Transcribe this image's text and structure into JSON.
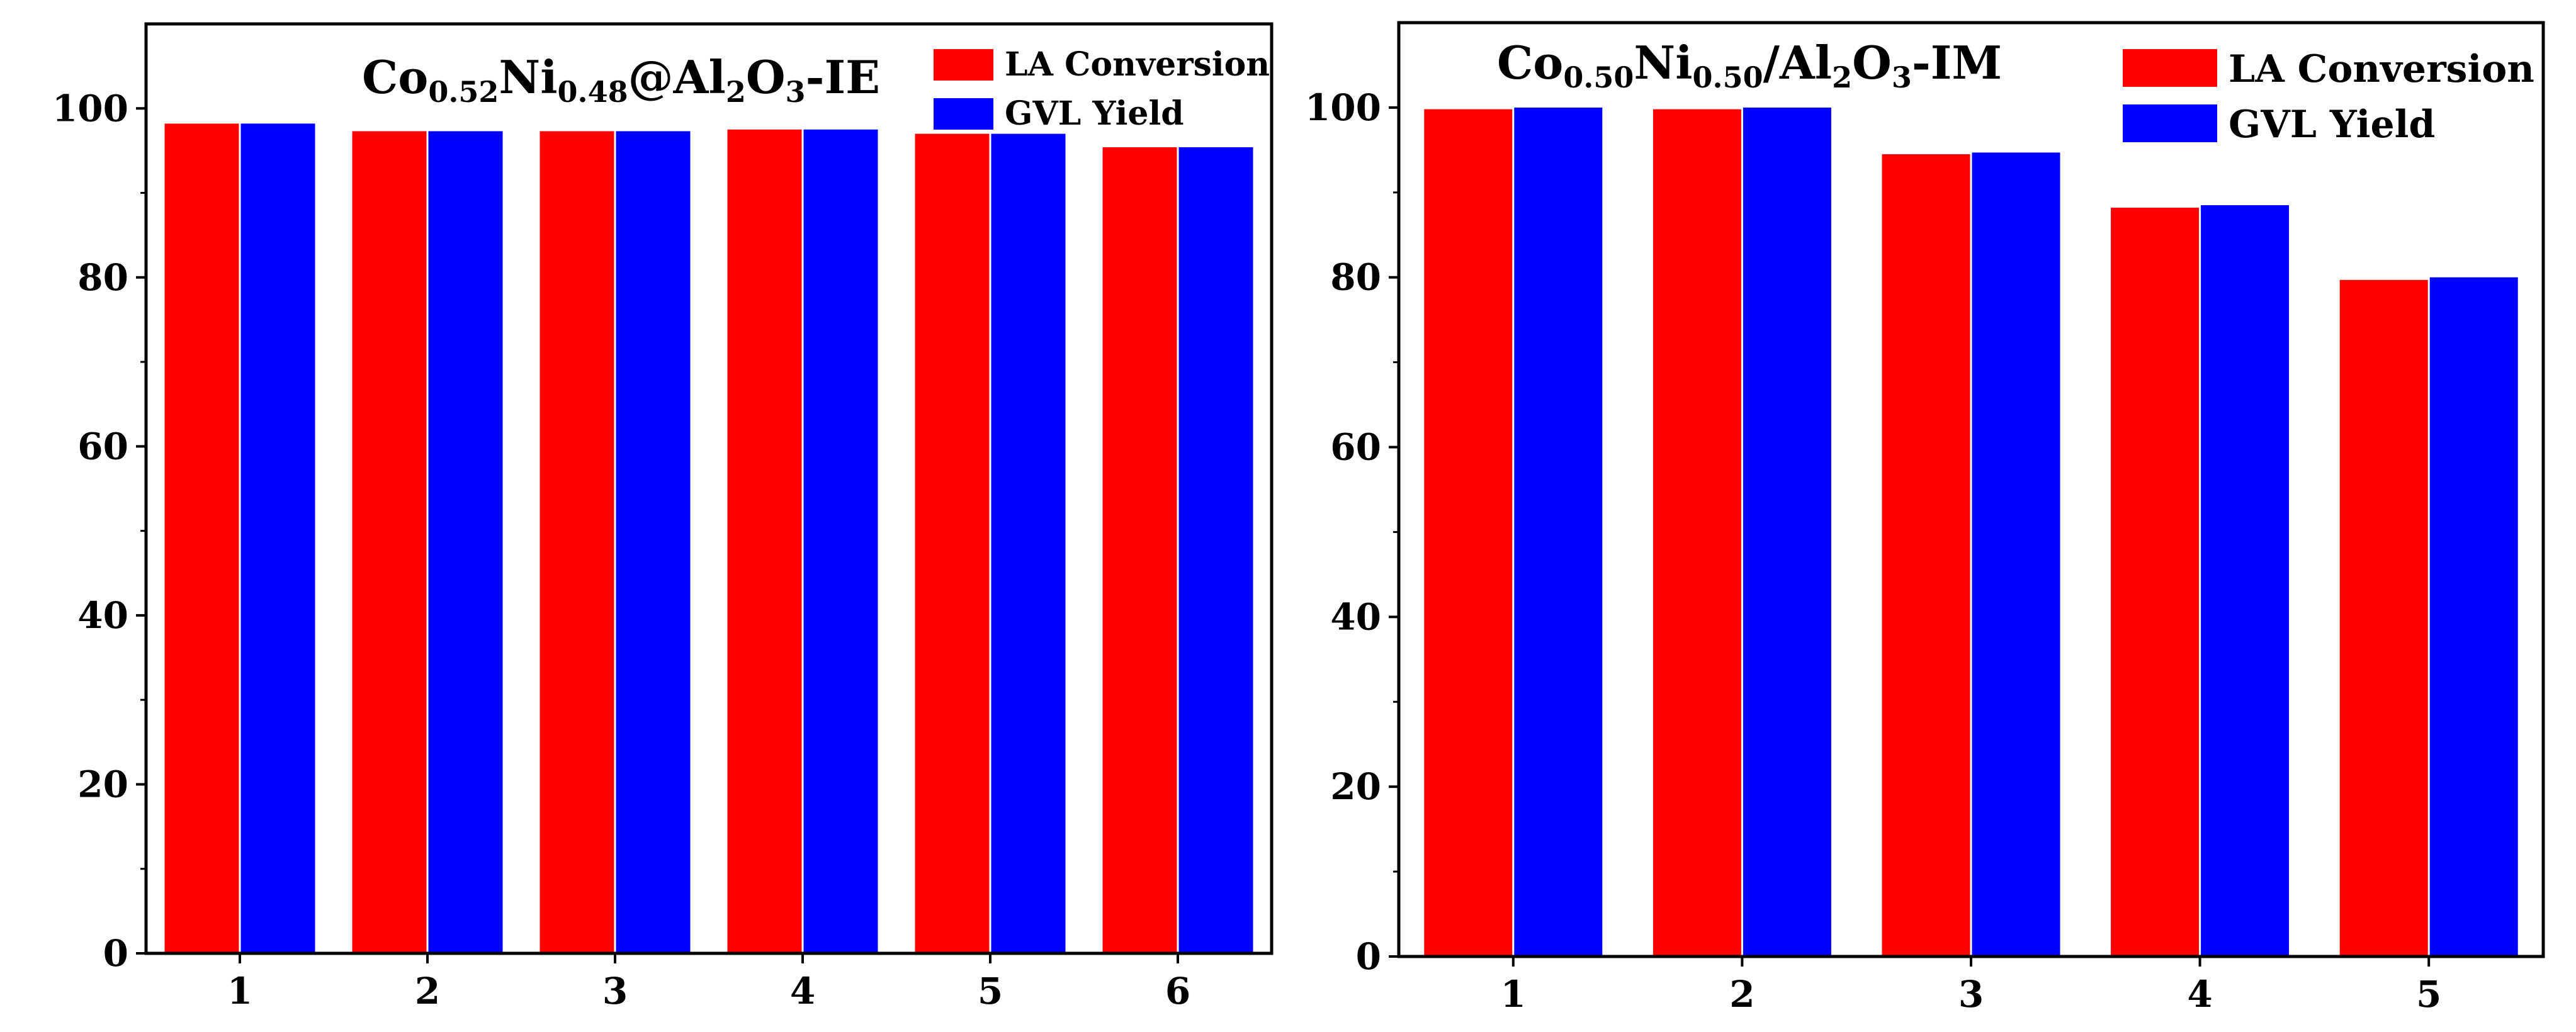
{
  "chart_data": [
    {
      "type": "bar",
      "title": "Co0.52Ni0.48@Al2O3-IE",
      "title_parts": [
        {
          "t": "Co"
        },
        {
          "t": "0.52",
          "sub": true
        },
        {
          "t": "Ni"
        },
        {
          "t": "0.48",
          "sub": true
        },
        {
          "t": "@Al"
        },
        {
          "t": "2",
          "sub": true
        },
        {
          "t": "O"
        },
        {
          "t": "3",
          "sub": true
        },
        {
          "t": "-IE"
        }
      ],
      "categories": [
        "1",
        "2",
        "3",
        "4",
        "5",
        "6"
      ],
      "series": [
        {
          "name": "LA Conversion",
          "color": "#ff0000",
          "values": [
            98.2,
            97.3,
            97.3,
            97.5,
            97.0,
            95.4
          ]
        },
        {
          "name": "GVL Yield",
          "color": "#0000ff",
          "values": [
            98.2,
            97.3,
            97.3,
            97.5,
            97.0,
            95.4
          ]
        }
      ],
      "xlabel": "",
      "ylabel": "",
      "ylim": [
        0,
        110
      ],
      "yticks": [
        0,
        20,
        40,
        60,
        80,
        100
      ],
      "legend_position": "top-right",
      "grid": false
    },
    {
      "type": "bar",
      "title": "Co0.50Ni0.50/Al2O3-IM",
      "title_parts": [
        {
          "t": "Co"
        },
        {
          "t": "0.50",
          "sub": true
        },
        {
          "t": "Ni"
        },
        {
          "t": "0.50",
          "sub": true
        },
        {
          "t": "/Al"
        },
        {
          "t": "2",
          "sub": true
        },
        {
          "t": "O"
        },
        {
          "t": "3",
          "sub": true
        },
        {
          "t": "-IM"
        }
      ],
      "categories": [
        "1",
        "2",
        "3",
        "4",
        "5"
      ],
      "series": [
        {
          "name": "LA Conversion",
          "color": "#ff0000",
          "values": [
            99.8,
            99.8,
            94.5,
            88.2,
            79.7
          ]
        },
        {
          "name": "GVL Yield",
          "color": "#0000ff",
          "values": [
            100.0,
            100.0,
            94.7,
            88.5,
            80.0
          ]
        }
      ],
      "xlabel": "",
      "ylabel": "",
      "ylim": [
        0,
        110
      ],
      "yticks": [
        0,
        20,
        40,
        60,
        80,
        100
      ],
      "legend_position": "top-right",
      "grid": false
    }
  ]
}
